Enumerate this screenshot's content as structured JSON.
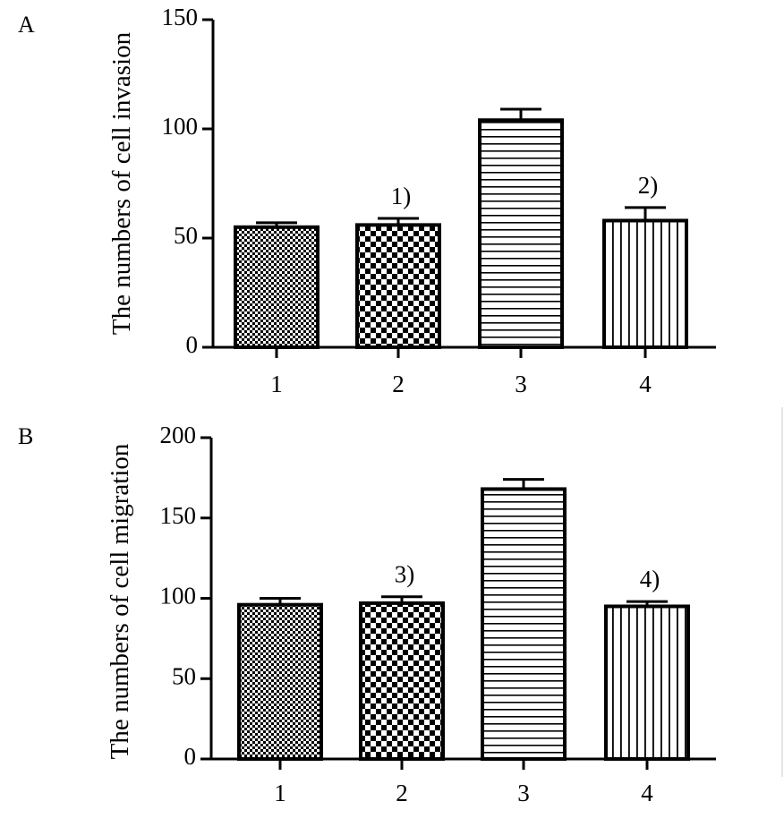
{
  "chart_data": [
    {
      "type": "bar",
      "panel": "A",
      "categories": [
        "1",
        "2",
        "3",
        "4"
      ],
      "values": [
        55,
        56,
        104,
        58
      ],
      "errors": [
        2,
        3,
        5,
        6
      ],
      "annotations": [
        "",
        "1)",
        "",
        "2)"
      ],
      "patterns": [
        "dense-check",
        "check",
        "horizontal-lines",
        "vertical-lines"
      ],
      "ylabel": "The numbers of cell invasion",
      "xlabel": "",
      "ylim": [
        0,
        150
      ],
      "yticks": [
        0,
        50,
        100,
        150
      ],
      "grid": false,
      "legend": "none"
    },
    {
      "type": "bar",
      "panel": "B",
      "categories": [
        "1",
        "2",
        "3",
        "4"
      ],
      "values": [
        96,
        97,
        168,
        95
      ],
      "errors": [
        4,
        4,
        6,
        3
      ],
      "annotations": [
        "",
        "3)",
        "",
        "4)"
      ],
      "patterns": [
        "dense-check",
        "check",
        "horizontal-lines",
        "vertical-lines"
      ],
      "ylabel": "The numbers of cell migration",
      "xlabel": "",
      "ylim": [
        0,
        200
      ],
      "yticks": [
        0,
        50,
        100,
        150,
        200
      ],
      "grid": false,
      "legend": "none"
    }
  ]
}
